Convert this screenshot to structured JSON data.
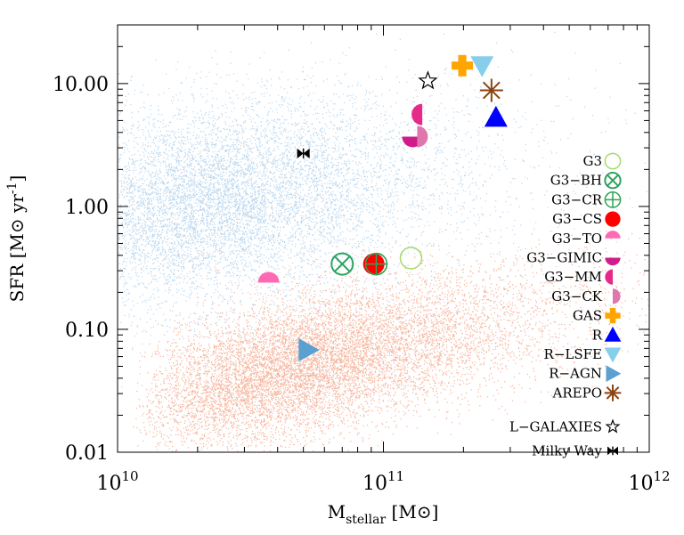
{
  "chart_data": {
    "type": "scatter",
    "title": "",
    "xlabel": "M",
    "xlabel_sub": "stellar",
    "xlabel_unit": "[M",
    "xlabel_unit_close": "]",
    "ylabel": "SFR [M",
    "ylabel_unit": "yr",
    "ylabel_exp": "-1",
    "ylabel_close": "]",
    "x_log": true,
    "y_log": true,
    "xlim": [
      10000000000.0,
      1000000000000.0
    ],
    "ylim": [
      0.01,
      30
    ],
    "x_ticks": [
      {
        "value": 10000000000.0,
        "base": "10",
        "exp": "10"
      },
      {
        "value": 100000000000.0,
        "base": "10",
        "exp": "11"
      },
      {
        "value": 1000000000000.0,
        "base": "10",
        "exp": "12"
      }
    ],
    "y_ticks": [
      {
        "value": 0.01,
        "label": "0.01"
      },
      {
        "value": 0.1,
        "label": "0.10"
      },
      {
        "value": 1,
        "label": "1.00"
      },
      {
        "value": 10,
        "label": "10.00"
      }
    ],
    "background_clouds": [
      {
        "population": "star-forming",
        "color": "#b9d6ee"
      },
      {
        "population": "passive",
        "color": "#f6b49c"
      }
    ],
    "legend_position": "right",
    "series": [
      {
        "name": "G3",
        "marker": "open-circle",
        "color": "#a6d96a",
        "x": 127000000000.0,
        "y": 0.38
      },
      {
        "name": "G3−BH",
        "marker": "circle-x",
        "color": "#2ca25f",
        "x": 70000000000.0,
        "y": 0.34
      },
      {
        "name": "G3−CR",
        "marker": "circle-plus",
        "color": "#31a354",
        "x": 94000000000.0,
        "y": 0.34
      },
      {
        "name": "G3−CS",
        "marker": "filled-circle",
        "color": "#ff0000",
        "x": 92000000000.0,
        "y": 0.34
      },
      {
        "name": "G3−TO",
        "marker": "half-top",
        "color": "#ff69b4",
        "x": 37000000000.0,
        "y": 0.24
      },
      {
        "name": "G3−GIMIC",
        "marker": "half-bottom",
        "color": "#d01c8b",
        "x": 129000000000.0,
        "y": 3.7
      },
      {
        "name": "G3−MM",
        "marker": "half-left",
        "color": "#e7298a",
        "x": 140000000000.0,
        "y": 5.6
      },
      {
        "name": "G3−CK",
        "marker": "half-right",
        "color": "#de77ae",
        "x": 134000000000.0,
        "y": 3.7
      },
      {
        "name": "GAS",
        "marker": "plus",
        "color": "#ffa500",
        "x": 198000000000.0,
        "y": 14.0
      },
      {
        "name": "R",
        "marker": "triangle-up",
        "color": "#0000ff",
        "x": 265000000000.0,
        "y": 5.3
      },
      {
        "name": "R−LSFE",
        "marker": "triangle-down",
        "color": "#87ceeb",
        "x": 235000000000.0,
        "y": 14.0
      },
      {
        "name": "R−AGN",
        "marker": "triangle-right",
        "color": "#5aa0d0",
        "x": 52000000000.0,
        "y": 0.068
      },
      {
        "name": "AREPO",
        "marker": "asterisk",
        "color": "#8b4513",
        "x": 255000000000.0,
        "y": 8.8
      },
      {
        "name": "L−GALAXIES",
        "marker": "open-star",
        "color": "#000000",
        "x": 147000000000.0,
        "y": 10.5
      },
      {
        "name": "Milky Way",
        "marker": "bowtie",
        "color": "#000000",
        "x": 50000000000.0,
        "y": 2.7
      }
    ]
  }
}
